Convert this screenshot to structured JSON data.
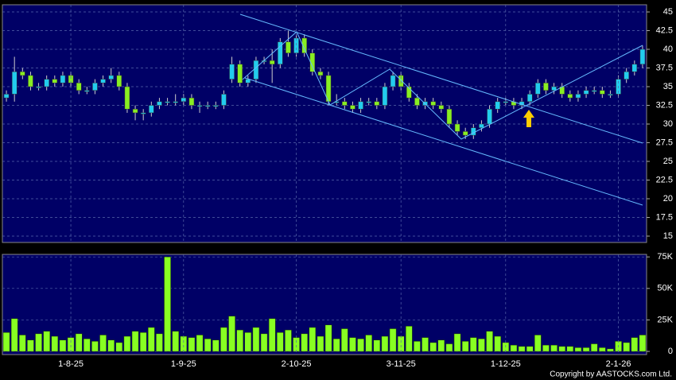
{
  "chart_data": [
    {
      "type": "candlestick",
      "up_color": "#22ccee",
      "down_color": "#88ee22",
      "open": [
        33.5,
        34,
        37,
        36.5,
        35,
        35,
        36,
        35.5,
        36.5,
        35.5,
        34.5,
        34.5,
        35.5,
        36,
        36.5,
        35,
        32,
        31.5,
        31.5,
        32.5,
        33,
        33,
        33,
        33.5,
        32.5,
        32.5,
        32.5,
        32.5,
        36,
        38,
        35.5,
        36,
        38.5,
        38.5,
        38,
        41,
        39.5,
        41.5,
        39.5,
        37,
        36.5,
        33,
        33,
        32.5,
        32,
        33,
        33,
        32.5,
        35,
        36.5,
        35,
        33.5,
        32.5,
        33,
        32.5,
        32,
        30,
        29,
        28.5,
        29.5,
        30,
        32,
        33,
        33,
        32.5,
        33,
        34,
        35.5,
        34.5,
        35,
        34,
        33.5,
        34,
        34.5,
        34.5,
        34,
        34,
        36,
        37,
        38
      ],
      "high": [
        34.5,
        39,
        37.5,
        37,
        35.5,
        36.5,
        36.5,
        37,
        37,
        36,
        35,
        36,
        36.5,
        37.5,
        37,
        35.5,
        32.5,
        32,
        33,
        33.5,
        33.5,
        34,
        34,
        34,
        33,
        33,
        33,
        34.5,
        39,
        38.5,
        36.5,
        39,
        39,
        40,
        41.5,
        42.5,
        42,
        42,
        40,
        37.5,
        37,
        34,
        33.5,
        33,
        33.5,
        33.5,
        33.5,
        35.5,
        37,
        37,
        35.5,
        34,
        33.5,
        33.5,
        33,
        32.5,
        30.5,
        29.5,
        30,
        30.5,
        32.5,
        33.5,
        33.5,
        33.5,
        33.5,
        34.5,
        36,
        36,
        35.5,
        35.5,
        34.5,
        34.5,
        35,
        35,
        35,
        34.5,
        36.5,
        37.5,
        38.5,
        40.5
      ],
      "low": [
        33,
        33,
        36,
        34.5,
        34.5,
        34.5,
        35,
        35,
        35,
        34,
        34,
        34,
        35,
        35.5,
        34.5,
        31.5,
        30.5,
        30.5,
        31,
        32,
        32.5,
        32.5,
        32.5,
        32,
        31.5,
        32,
        32,
        32,
        35.5,
        35,
        35,
        35.5,
        38,
        35.5,
        37.5,
        39,
        39,
        39,
        36.5,
        36,
        32.5,
        32.5,
        32,
        31.5,
        31.5,
        32.5,
        32,
        32,
        34.5,
        34.5,
        33,
        32,
        32,
        32,
        31.5,
        29.5,
        28.5,
        28,
        28,
        29,
        29.5,
        31.5,
        32.5,
        32,
        32,
        32.5,
        33.5,
        34,
        34,
        33.5,
        33,
        33,
        33.5,
        34,
        33.5,
        33.5,
        33.5,
        35.5,
        36.5,
        37.5
      ],
      "close": [
        34,
        37,
        36.5,
        35,
        35,
        36,
        35.5,
        36.5,
        35.5,
        34.5,
        34.5,
        35.5,
        36,
        36.5,
        35,
        32,
        31.5,
        31.5,
        32.5,
        33,
        33,
        33,
        33.5,
        32.5,
        32.5,
        32.5,
        32.5,
        34,
        38,
        35.5,
        36,
        38.5,
        38.5,
        38,
        41,
        39.5,
        41.5,
        39.5,
        37,
        36.5,
        33,
        33,
        32.5,
        32,
        33,
        33,
        32.5,
        35,
        36.5,
        35,
        33.5,
        32.5,
        33,
        32.5,
        32,
        30,
        29,
        28.5,
        29.5,
        30,
        32,
        33,
        33,
        32.5,
        33,
        34,
        35.5,
        34.5,
        35,
        34,
        33.5,
        34,
        34.5,
        34.5,
        34,
        34,
        36,
        37,
        38,
        40
      ],
      "ylim": [
        14.15,
        45.96
      ],
      "yticks": [
        15,
        17.5,
        20,
        22.5,
        25,
        27.5,
        30,
        32.5,
        35,
        37.5,
        40,
        42.5,
        45
      ],
      "grid": true
    },
    {
      "type": "bar",
      "color": "#88ff22",
      "categories": [
        null,
        null,
        null,
        null,
        null,
        null,
        null,
        null,
        "1-8-25",
        null,
        null,
        null,
        null,
        null,
        null,
        null,
        null,
        null,
        null,
        null,
        null,
        null,
        "1-9-25",
        null,
        null,
        null,
        null,
        null,
        null,
        null,
        null,
        null,
        null,
        null,
        null,
        null,
        "2-10-25",
        null,
        null,
        null,
        null,
        null,
        null,
        null,
        null,
        null,
        null,
        null,
        null,
        "3-11-25",
        null,
        null,
        null,
        null,
        null,
        null,
        null,
        null,
        null,
        null,
        null,
        null,
        "1-12-25",
        null,
        null,
        null,
        null,
        null,
        null,
        null,
        null,
        null,
        null,
        null,
        null,
        null,
        "2-1-26",
        null,
        null,
        null
      ],
      "values": [
        15000,
        26000,
        13000,
        9000,
        14000,
        16000,
        12000,
        9000,
        11000,
        14000,
        10000,
        8000,
        13000,
        9000,
        7000,
        12000,
        16000,
        15000,
        19000,
        14000,
        75000,
        16000,
        12000,
        11000,
        13000,
        10000,
        9000,
        19000,
        28000,
        17000,
        15000,
        19000,
        14000,
        26000,
        15000,
        17000,
        11000,
        14000,
        19000,
        12000,
        21000,
        10000,
        18000,
        11000,
        10000,
        13000,
        9000,
        12000,
        18000,
        12000,
        20000,
        8000,
        11000,
        7000,
        9000,
        6000,
        14000,
        8000,
        11000,
        10000,
        16000,
        12000,
        7000,
        5000,
        4000,
        4000,
        13000,
        5000,
        5000,
        4000,
        4000,
        3000,
        3000,
        6000,
        3000,
        2000,
        8000,
        7000,
        11000,
        13000
      ],
      "ylim": [
        -2500,
        77000
      ],
      "yticks": [
        0,
        {
          "value": 25000,
          "label": "25K"
        },
        {
          "value": 50000,
          "label": "50K"
        },
        {
          "value": 75000,
          "label": "75K"
        }
      ],
      "grid": true,
      "footnote": "Copyright by AASTOCKS.com Ltd."
    }
  ]
}
